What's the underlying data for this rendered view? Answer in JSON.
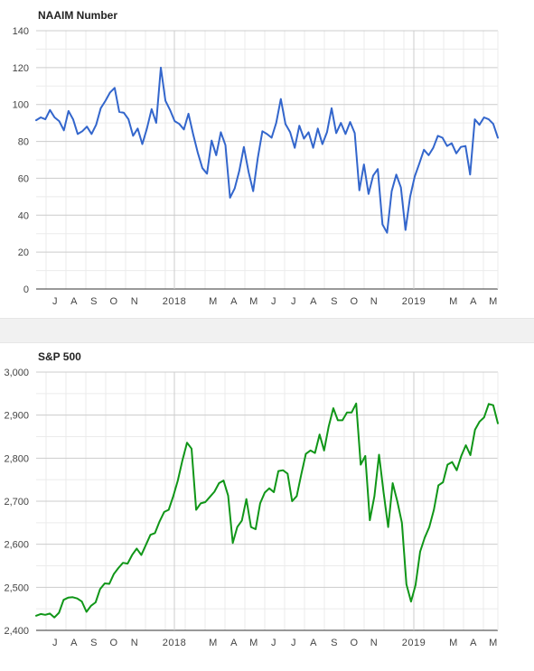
{
  "chart_data": [
    {
      "type": "line",
      "title": "NAAIM Number",
      "xlabel": "",
      "ylabel": "",
      "ylim": [
        0,
        140
      ],
      "y_ticks": [
        "0",
        "20",
        "40",
        "60",
        "80",
        "100",
        "120",
        "140"
      ],
      "x_ticks": [
        "J",
        "A",
        "S",
        "O",
        "N",
        "2018",
        "M",
        "A",
        "M",
        "J",
        "J",
        "A",
        "S",
        "O",
        "N",
        "2019",
        "M",
        "A",
        "M"
      ],
      "grid": true,
      "color": "#3366cc",
      "series": [
        {
          "values": [
            91.5,
            93,
            92,
            97,
            93,
            91,
            86,
            96.5,
            92,
            84,
            85.5,
            88,
            84,
            89,
            98,
            102,
            106.5,
            109,
            96,
            95.5,
            92,
            83,
            87,
            78.5,
            87,
            97.5,
            90,
            120,
            102,
            97,
            91,
            89.5,
            86.5,
            95,
            84,
            74,
            65.5,
            62.5,
            80.5,
            72.5,
            85,
            78,
            49.5,
            54.5,
            64,
            77,
            63.5,
            53,
            71,
            85.5,
            84,
            82,
            90,
            103,
            89.5,
            85,
            76.5,
            88.5,
            81.5,
            85,
            76.5,
            87,
            78.5,
            85,
            98,
            84.5,
            90,
            84,
            90.5,
            84.5,
            53.5,
            67.5,
            51.5,
            61.5,
            65,
            35,
            30.5,
            53,
            62,
            55,
            32,
            50,
            61,
            68,
            75.5,
            72.5,
            76.5,
            83,
            82,
            77.5,
            79,
            73.5,
            77,
            77.5,
            62,
            92,
            89,
            93,
            92,
            89.5,
            82
          ]
        }
      ]
    },
    {
      "type": "line",
      "title": "S&P 500",
      "xlabel": "",
      "ylabel": "",
      "ylim": [
        2400,
        3000
      ],
      "y_ticks": [
        "2,400",
        "2,500",
        "2,600",
        "2,700",
        "2,800",
        "2,900",
        "3,000"
      ],
      "x_ticks": [
        "J",
        "A",
        "S",
        "O",
        "N",
        "2018",
        "M",
        "A",
        "M",
        "J",
        "J",
        "A",
        "S",
        "O",
        "N",
        "2019",
        "M",
        "A",
        "M"
      ],
      "grid": true,
      "color": "#109618",
      "series": [
        {
          "values": [
            2434,
            2438,
            2436,
            2439,
            2430,
            2441,
            2471,
            2476,
            2477,
            2474,
            2467,
            2443,
            2457,
            2465,
            2496,
            2509,
            2508,
            2531,
            2545,
            2557,
            2555,
            2575,
            2590,
            2575,
            2598,
            2622,
            2626,
            2653,
            2675,
            2680,
            2712,
            2748,
            2795,
            2836,
            2822,
            2680,
            2695,
            2698,
            2710,
            2722,
            2742,
            2748,
            2713,
            2603,
            2640,
            2655,
            2705,
            2640,
            2635,
            2695,
            2720,
            2730,
            2721,
            2770,
            2772,
            2764,
            2700,
            2712,
            2762,
            2810,
            2818,
            2812,
            2855,
            2818,
            2874,
            2916,
            2888,
            2888,
            2906,
            2906,
            2927,
            2785,
            2805,
            2656,
            2712,
            2808,
            2721,
            2640,
            2742,
            2700,
            2650,
            2507,
            2467,
            2505,
            2583,
            2615,
            2640,
            2680,
            2737,
            2744,
            2785,
            2791,
            2772,
            2805,
            2830,
            2807,
            2866,
            2885,
            2895,
            2926,
            2923,
            2881
          ]
        }
      ]
    }
  ]
}
